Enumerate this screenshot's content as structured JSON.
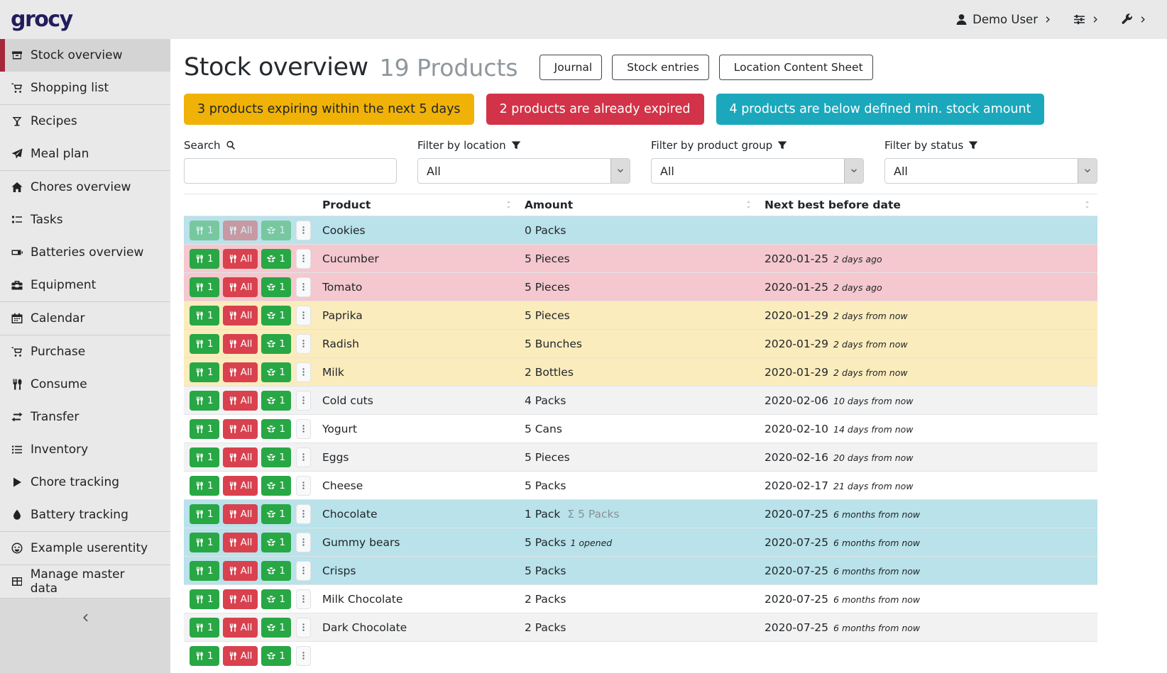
{
  "app": {
    "logo": "grocy"
  },
  "topbar": {
    "user": {
      "label": "Demo User",
      "icon": "user-icon"
    },
    "settings_icon": "sliders-icon",
    "admin_icon": "wrench-icon"
  },
  "sidebar": {
    "items": [
      {
        "label": "Stock overview",
        "icon": "box-icon",
        "active": true
      },
      {
        "label": "Shopping list",
        "icon": "cart-icon",
        "divider_after": true
      },
      {
        "label": "Recipes",
        "icon": "recipes-icon"
      },
      {
        "label": "Meal plan",
        "icon": "paper-plane-icon",
        "divider_after": true
      },
      {
        "label": "Chores overview",
        "icon": "home-icon"
      },
      {
        "label": "Tasks",
        "icon": "tasks-icon"
      },
      {
        "label": "Batteries overview",
        "icon": "battery-icon"
      },
      {
        "label": "Equipment",
        "icon": "toolbox-icon",
        "divider_after": true
      },
      {
        "label": "Calendar",
        "icon": "calendar-icon",
        "divider_after": true
      },
      {
        "label": "Purchase",
        "icon": "cart-icon"
      },
      {
        "label": "Consume",
        "icon": "utensils-icon"
      },
      {
        "label": "Transfer",
        "icon": "transfer-icon"
      },
      {
        "label": "Inventory",
        "icon": "list-icon"
      },
      {
        "label": "Chore tracking",
        "icon": "play-icon"
      },
      {
        "label": "Battery tracking",
        "icon": "tint-icon",
        "divider_after": true
      },
      {
        "label": "Example userentity",
        "icon": "smiley-icon",
        "divider_after": true
      },
      {
        "label": "Manage master data",
        "icon": "table-icon",
        "chevron": true,
        "divider_after": true
      }
    ]
  },
  "page": {
    "title": "Stock overview",
    "subtitle": "19 Products",
    "buttons": [
      {
        "label": "Journal",
        "icon": "file-icon"
      },
      {
        "label": "Stock entries",
        "icon": "boxes-icon"
      },
      {
        "label": "Location Content Sheet",
        "icon": "print-icon"
      }
    ],
    "banners": [
      {
        "text": "3 products expiring within the next 5 days",
        "bg": "#f0b206",
        "fg": "#212529"
      },
      {
        "text": "2 products are already expired",
        "bg": "#d23349",
        "fg": "#ffffff"
      },
      {
        "text": "4 products are below defined min. stock amount",
        "bg": "#1ba8bc",
        "fg": "#ffffff"
      }
    ]
  },
  "filters": {
    "search": {
      "label": "Search",
      "icon": "search-icon",
      "value": "",
      "placeholder": ""
    },
    "location": {
      "label": "Filter by location",
      "icon": "filter-icon",
      "value": "All"
    },
    "group": {
      "label": "Filter by product group",
      "icon": "filter-icon",
      "value": "All"
    },
    "status": {
      "label": "Filter by status",
      "icon": "filter-icon",
      "value": "All"
    }
  },
  "table": {
    "columns": {
      "product": "Product",
      "amount": "Amount",
      "date": "Next best before date"
    },
    "action_buttons": {
      "consume_one": "1",
      "consume_all": "All",
      "open_one": "1",
      "consume_icon": "utensils-icon",
      "open_icon": "box-open-icon",
      "menu_icon": "ellipsis-v-icon"
    },
    "rows": [
      {
        "product": "Cookies",
        "amount": "0 Packs",
        "status": "belowmin",
        "disabled": true,
        "date": "",
        "rel": ""
      },
      {
        "product": "Cucumber",
        "amount": "5 Pieces",
        "status": "expired",
        "date": "2020-01-25",
        "rel": "2 days ago"
      },
      {
        "product": "Tomato",
        "amount": "5 Pieces",
        "status": "expired",
        "date": "2020-01-25",
        "rel": "2 days ago"
      },
      {
        "product": "Paprika",
        "amount": "5 Pieces",
        "status": "expiring",
        "date": "2020-01-29",
        "rel": "2 days from now"
      },
      {
        "product": "Radish",
        "amount": "5 Bunches",
        "status": "expiring",
        "date": "2020-01-29",
        "rel": "2 days from now"
      },
      {
        "product": "Milk",
        "amount": "2 Bottles",
        "status": "expiring",
        "date": "2020-01-29",
        "rel": "2 days from now"
      },
      {
        "product": "Cold cuts",
        "amount": "4 Packs",
        "status": "",
        "date": "2020-02-06",
        "rel": "10 days from now"
      },
      {
        "product": "Yogurt",
        "amount": "5 Cans",
        "status": "",
        "date": "2020-02-10",
        "rel": "14 days from now"
      },
      {
        "product": "Eggs",
        "amount": "5 Pieces",
        "status": "",
        "date": "2020-02-16",
        "rel": "20 days from now"
      },
      {
        "product": "Cheese",
        "amount": "5 Packs",
        "status": "",
        "date": "2020-02-17",
        "rel": "21 days from now"
      },
      {
        "product": "Chocolate",
        "amount": "1 Pack",
        "amount_aggregate": "Σ 5 Packs",
        "status": "belowmin",
        "date": "2020-07-25",
        "rel": "6 months from now"
      },
      {
        "product": "Gummy bears",
        "amount": "5 Packs",
        "amount_note": "1 opened",
        "status": "belowmin",
        "date": "2020-07-25",
        "rel": "6 months from now"
      },
      {
        "product": "Crisps",
        "amount": "5 Packs",
        "status": "belowmin",
        "date": "2020-07-25",
        "rel": "6 months from now"
      },
      {
        "product": "Milk Chocolate",
        "amount": "2 Packs",
        "status": "",
        "date": "2020-07-25",
        "rel": "6 months from now"
      },
      {
        "product": "Dark Chocolate",
        "amount": "2 Packs",
        "status": "",
        "date": "2020-07-25",
        "rel": "6 months from now"
      },
      {
        "product": "",
        "amount": "",
        "status": "",
        "date": "",
        "rel": "",
        "partial": true
      }
    ]
  },
  "colors": {
    "accent_red": "#a5273b",
    "row_belowmin": "#b9e2ea",
    "row_expired": "#f4c8ce",
    "row_expiring": "#fbecbd",
    "btn_green": "#28a745",
    "btn_red": "#d9414e"
  }
}
